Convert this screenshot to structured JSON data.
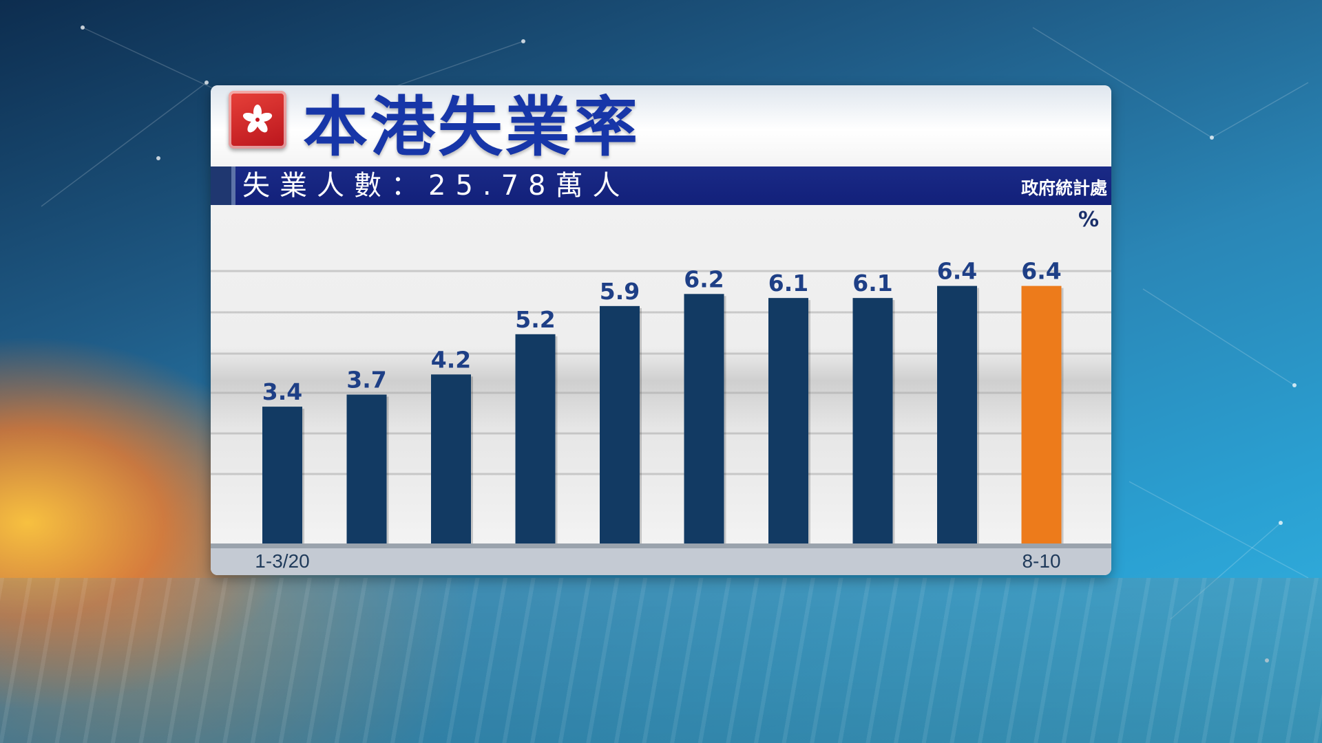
{
  "header": {
    "title": "本港失業率",
    "subtitle": "失業人數：25.78萬人",
    "source": "政府統計處",
    "unit": "%"
  },
  "colors": {
    "bar": "#123a63",
    "highlight_bar": "#ed7b1b",
    "label": "#1e3f86",
    "title": "#1736a8"
  },
  "chart_data": {
    "type": "bar",
    "categories": [
      "1-3/20",
      "",
      "",
      "",
      "",
      "",
      "",
      "",
      "",
      "8-10"
    ],
    "values": [
      3.4,
      3.7,
      4.2,
      5.2,
      5.9,
      6.2,
      6.1,
      6.1,
      6.4,
      6.4
    ],
    "data_labels": [
      "3.4",
      "3.7",
      "4.2",
      "5.2",
      "5.9",
      "6.2",
      "6.1",
      "6.1",
      "6.4",
      "6.4"
    ],
    "highlight_index": 9,
    "title": "本港失業率",
    "xlabel": "",
    "ylabel": "%",
    "ylim": [
      0,
      7
    ],
    "grid": true,
    "legend": "none"
  }
}
